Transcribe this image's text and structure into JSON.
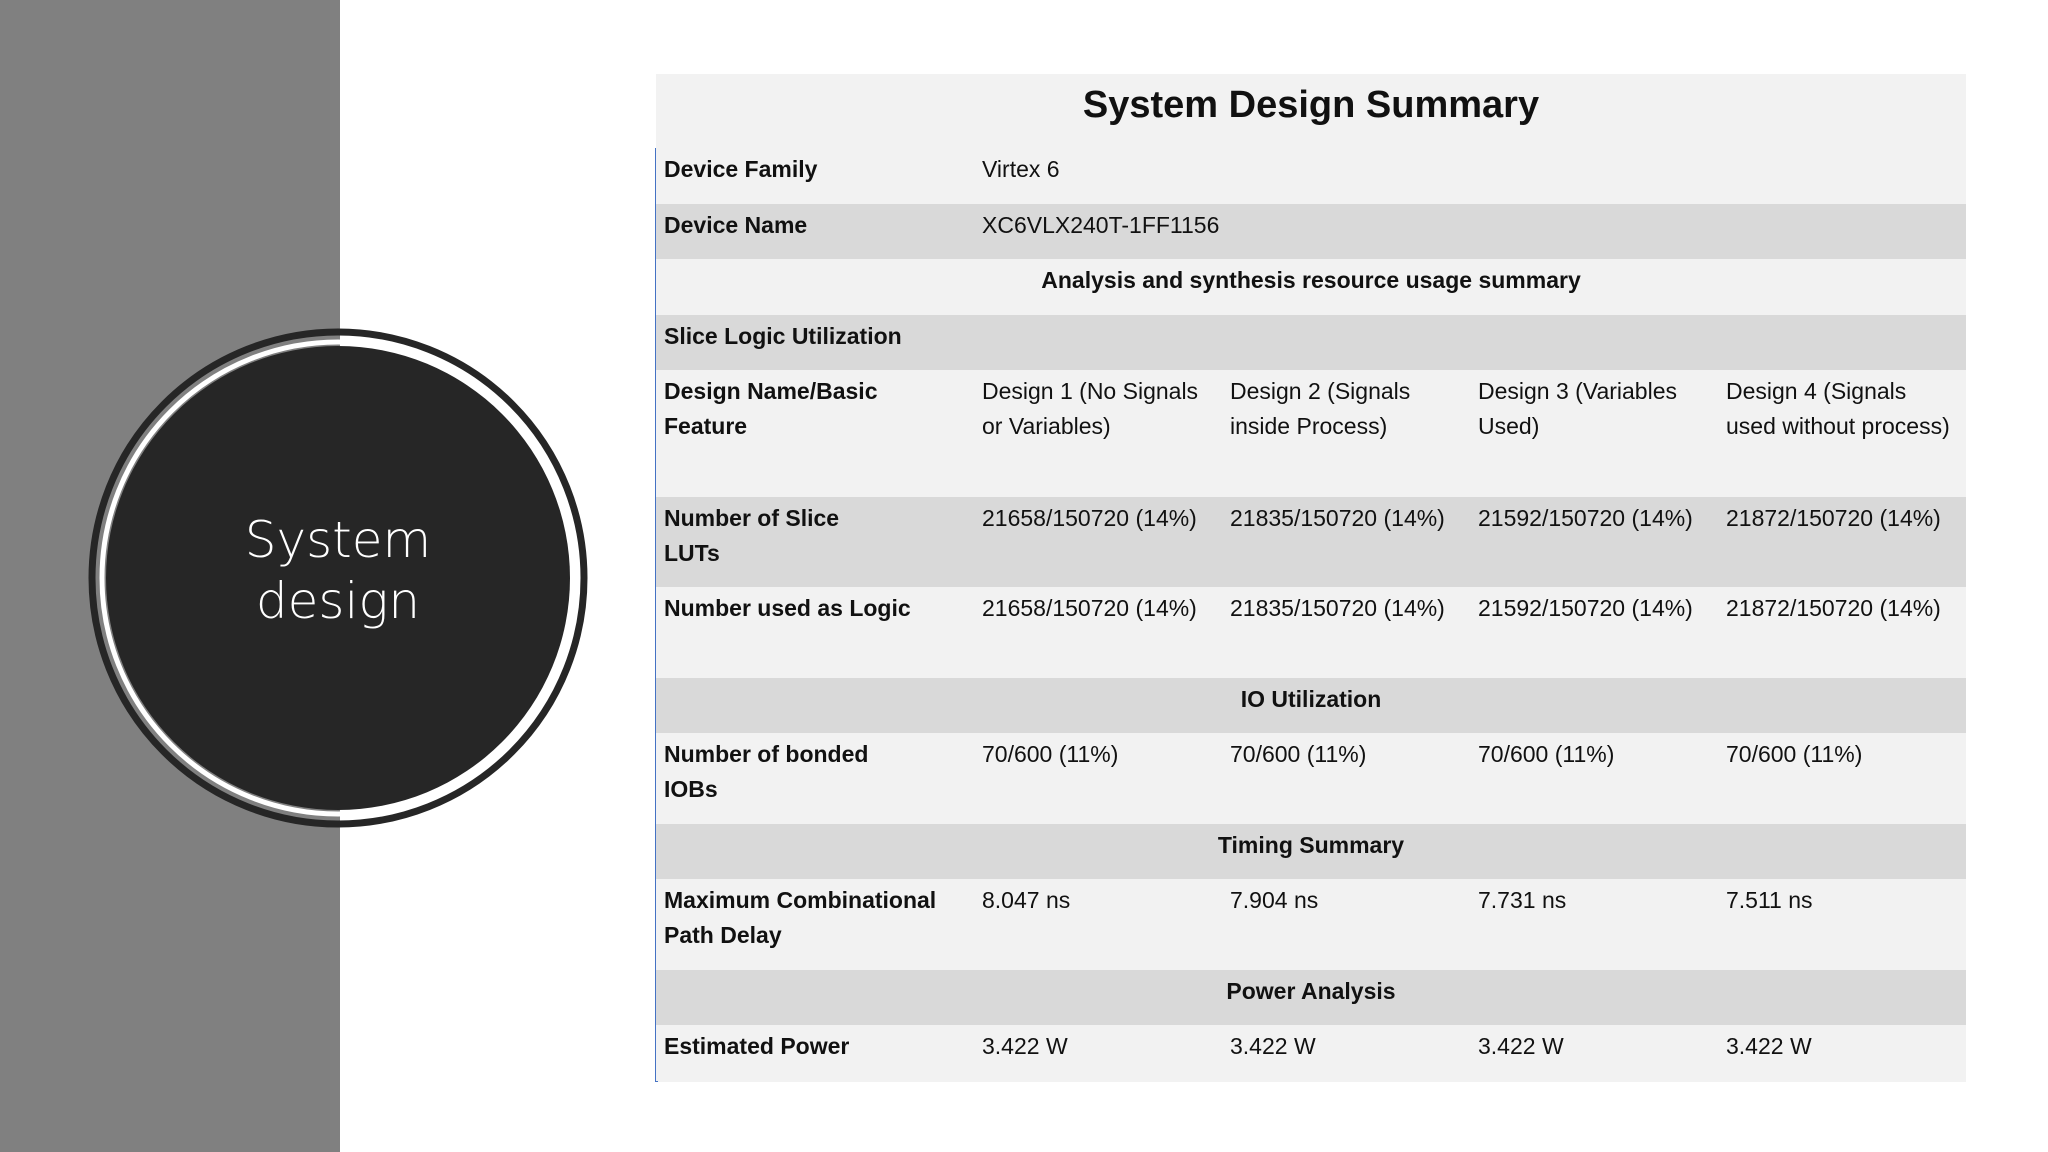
{
  "side": {
    "title": "System\ndesign"
  },
  "table": {
    "title": "System Design Summary",
    "device_family": {
      "label": "Device Family",
      "value": "Virtex 6"
    },
    "device_name": {
      "label": "Device Name",
      "value": "XC6VLX240T-1FF1156"
    },
    "section_analysis": "Analysis and synthesis resource usage summary",
    "slice_logic": "Slice Logic Utilization",
    "header": {
      "label": "Design Name/Basic Feature",
      "designs": [
        "Design 1 (No Signals or Variables)",
        "Design 2 (Signals inside Process)",
        "Design 3 (Variables Used)",
        "Design 4 (Signals used without process)"
      ]
    },
    "slice_luts": {
      "label": "Number of Slice LUTs",
      "values": [
        "21658/150720 (14%)",
        "21835/150720 (14%)",
        "21592/150720 (14%)",
        "21872/150720 (14%)"
      ]
    },
    "used_logic": {
      "label": "Number used as Logic",
      "values": [
        "21658/150720 (14%)",
        "21835/150720 (14%)",
        "21592/150720 (14%)",
        "21872/150720 (14%)"
      ]
    },
    "section_io": "IO Utilization",
    "bonded_iobs": {
      "label": "Number of bonded IOBs",
      "values": [
        "70/600 (11%)",
        "70/600 (11%)",
        "70/600 (11%)",
        "70/600 (11%)"
      ]
    },
    "section_timing": "Timing Summary",
    "max_delay": {
      "label": "Maximum Combinational Path Delay",
      "values": [
        "8.047 ns",
        "7.904 ns",
        "7.731 ns",
        "7.511 ns"
      ]
    },
    "section_power": "Power Analysis",
    "est_power": {
      "label": "Estimated Power",
      "values": [
        "3.422 W",
        "3.422 W",
        "3.422 W",
        "3.422 W"
      ]
    }
  }
}
